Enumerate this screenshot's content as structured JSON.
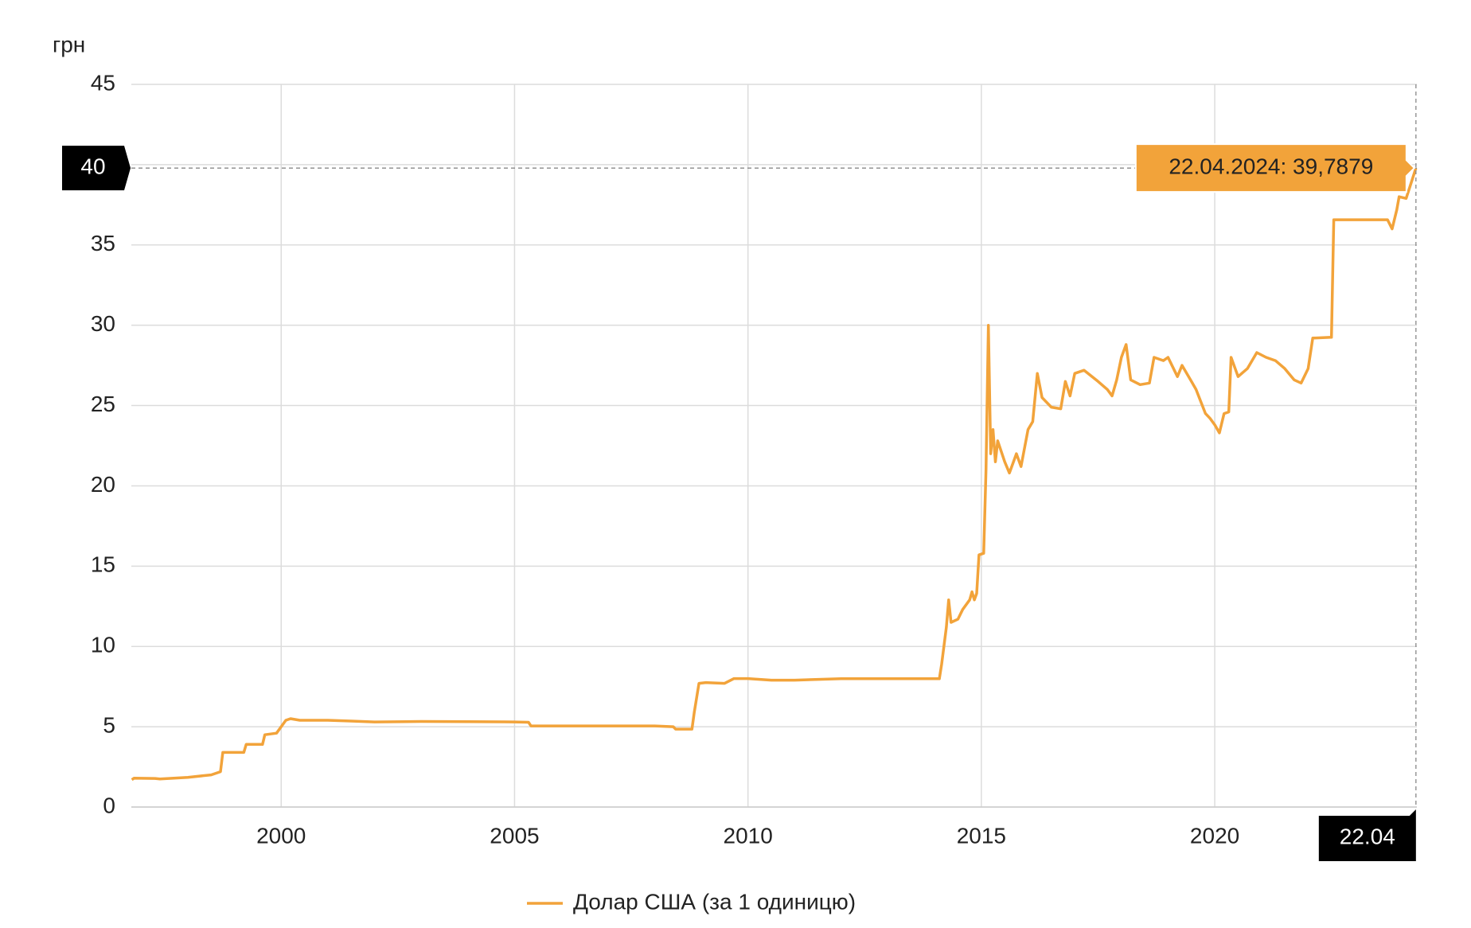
{
  "chart_data": {
    "type": "line",
    "y_label": "грн",
    "x": [
      1996.8,
      1996.85,
      1997.3,
      1997.4,
      1998.0,
      1998.5,
      1998.7,
      1998.75,
      1999.2,
      1999.25,
      1999.6,
      1999.65,
      1999.9,
      2000.1,
      2000.2,
      2000.4,
      2001.0,
      2001.5,
      2002.0,
      2003.0,
      2004.0,
      2005.0,
      2005.3,
      2005.35,
      2006.0,
      2008.0,
      2008.4,
      2008.45,
      2008.8,
      2008.85,
      2008.95,
      2009.1,
      2009.5,
      2009.7,
      2010.0,
      2010.5,
      2011.0,
      2012.0,
      2013.0,
      2014.1,
      2014.15,
      2014.25,
      2014.3,
      2014.35,
      2014.5,
      2014.6,
      2014.75,
      2014.8,
      2014.85,
      2014.9,
      2014.95,
      2015.05,
      2015.1,
      2015.15,
      2015.2,
      2015.25,
      2015.3,
      2015.35,
      2015.5,
      2015.6,
      2015.75,
      2015.85,
      2016.0,
      2016.1,
      2016.2,
      2016.3,
      2016.5,
      2016.7,
      2016.8,
      2016.9,
      2017.0,
      2017.2,
      2017.5,
      2017.7,
      2017.8,
      2017.9,
      2018.0,
      2018.1,
      2018.2,
      2018.4,
      2018.6,
      2018.7,
      2018.9,
      2019.0,
      2019.2,
      2019.3,
      2019.5,
      2019.6,
      2019.8,
      2019.9,
      2020.0,
      2020.1,
      2020.2,
      2020.3,
      2020.35,
      2020.5,
      2020.7,
      2020.9,
      2021.1,
      2021.3,
      2021.5,
      2021.7,
      2021.85,
      2022.0,
      2022.1,
      2022.5,
      2022.55,
      2023.7,
      2023.8,
      2023.9,
      2023.95,
      2024.1,
      2024.2,
      2024.31
    ],
    "series": [
      {
        "name": "Долар США (за 1 одиницю)",
        "color": "#f2a33a",
        "values": [
          1.7,
          1.8,
          1.78,
          1.75,
          1.85,
          2.0,
          2.2,
          3.4,
          3.4,
          3.9,
          3.9,
          4.5,
          4.6,
          5.4,
          5.5,
          5.4,
          5.4,
          5.35,
          5.3,
          5.33,
          5.32,
          5.3,
          5.28,
          5.05,
          5.05,
          5.05,
          5.0,
          4.85,
          4.85,
          5.9,
          7.7,
          7.75,
          7.7,
          8.0,
          8.0,
          7.9,
          7.9,
          7.99,
          7.99,
          7.99,
          8.9,
          11.2,
          12.9,
          11.5,
          11.7,
          12.3,
          12.9,
          13.4,
          12.9,
          13.3,
          15.7,
          15.8,
          21.0,
          30.0,
          22.0,
          23.5,
          21.5,
          22.8,
          21.5,
          20.8,
          22.0,
          21.2,
          23.5,
          24.0,
          27.0,
          25.5,
          24.9,
          24.8,
          26.5,
          25.6,
          27.0,
          27.2,
          26.5,
          26.0,
          25.6,
          26.6,
          28.0,
          28.8,
          26.6,
          26.3,
          26.4,
          28.0,
          27.8,
          28.0,
          26.8,
          27.5,
          26.5,
          26.0,
          24.5,
          24.2,
          23.8,
          23.3,
          24.5,
          24.6,
          28.0,
          26.8,
          27.3,
          28.3,
          28.0,
          27.8,
          27.3,
          26.6,
          26.4,
          27.3,
          29.2,
          29.25,
          36.57,
          36.57,
          36.0,
          37.2,
          38.0,
          37.9,
          38.8,
          39.7879
        ]
      }
    ],
    "xlim": [
      1996.79,
      2024.33
    ],
    "xticks": [
      2000,
      2005,
      2010,
      2015,
      2020
    ],
    "ylim": [
      0,
      45
    ],
    "yticks": [
      0,
      5,
      10,
      15,
      20,
      25,
      30,
      35,
      40,
      45
    ],
    "grid": true,
    "crosshair": {
      "x": {
        "value": 2024.31,
        "label": "22.04"
      },
      "y": {
        "value": 39.7879,
        "label": "40"
      }
    },
    "tooltip": "22.04.2024: 39,7879"
  }
}
